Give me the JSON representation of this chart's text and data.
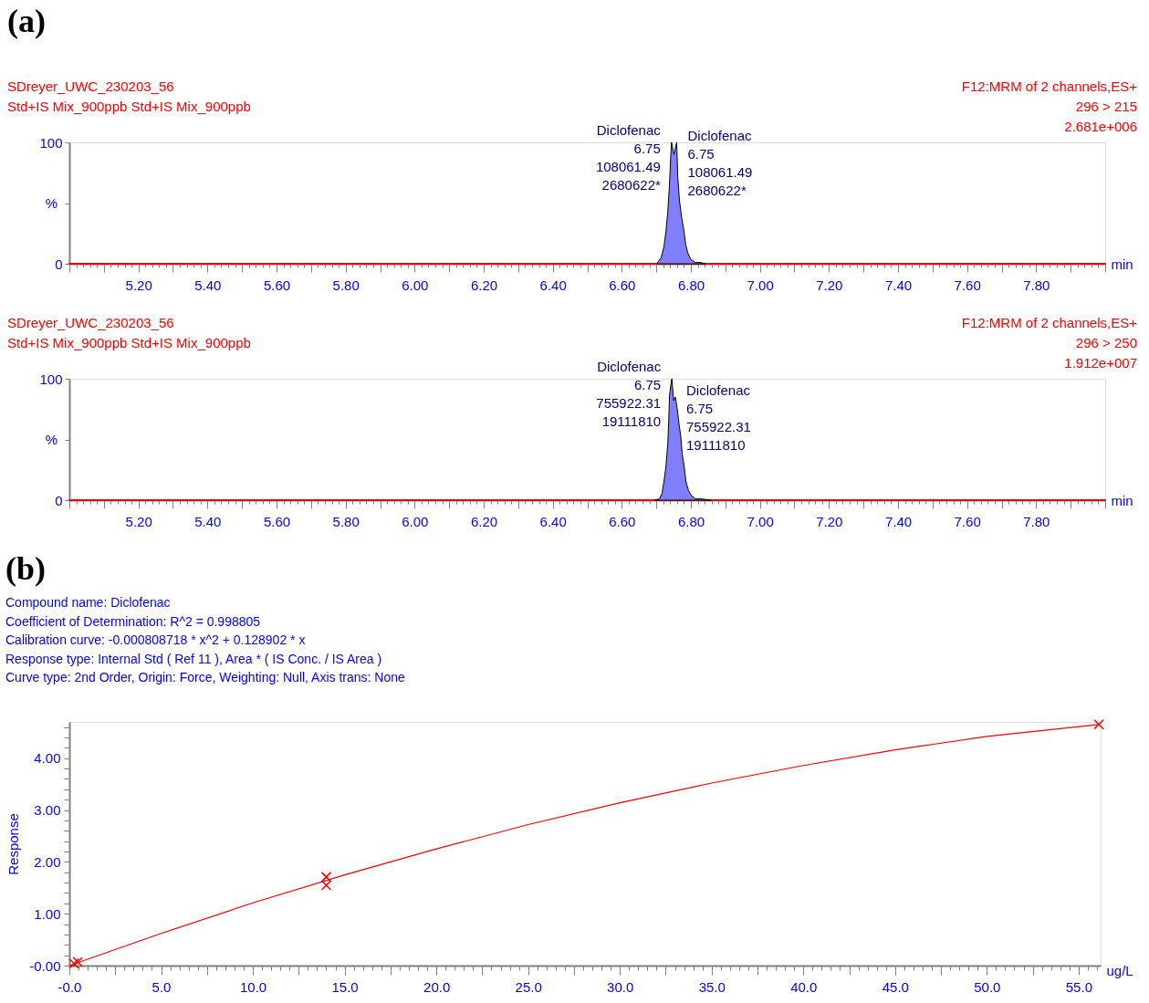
{
  "chart_data": [
    {
      "type": "area",
      "title": "(a)",
      "xlabel": "min",
      "ylabel": "%",
      "xlim": [
        5.0,
        8.0
      ],
      "ylim": [
        0,
        100
      ],
      "xticks": [
        {
          "value": 5.0,
          "label": null
        },
        {
          "value": 5.02,
          "label": null
        },
        {
          "value": 5.04,
          "label": null
        },
        {
          "value": 5.06,
          "label": null
        },
        {
          "value": 5.08,
          "label": null
        },
        {
          "value": 5.1,
          "label": null
        },
        {
          "value": 5.12,
          "label": null
        },
        {
          "value": 5.14,
          "label": null
        },
        {
          "value": 5.16,
          "label": null
        },
        {
          "value": 5.18,
          "label": null
        },
        {
          "value": 5.2,
          "label": "5.20"
        },
        {
          "value": 5.22,
          "label": null
        },
        {
          "value": 5.24,
          "label": null
        },
        {
          "value": 5.26,
          "label": null
        },
        {
          "value": 5.28,
          "label": null
        },
        {
          "value": 5.3,
          "label": null
        },
        {
          "value": 5.32,
          "label": null
        },
        {
          "value": 5.34,
          "label": null
        },
        {
          "value": 5.36,
          "label": null
        },
        {
          "value": 5.38,
          "label": null
        },
        {
          "value": 5.4,
          "label": "5.40"
        },
        {
          "value": 5.42,
          "label": null
        },
        {
          "value": 5.44,
          "label": null
        },
        {
          "value": 5.46,
          "label": null
        },
        {
          "value": 5.48,
          "label": null
        },
        {
          "value": 5.5,
          "label": null
        },
        {
          "value": 5.52,
          "label": null
        },
        {
          "value": 5.54,
          "label": null
        },
        {
          "value": 5.56,
          "label": null
        },
        {
          "value": 5.58,
          "label": null
        },
        {
          "value": 5.6,
          "label": "5.60"
        },
        {
          "value": 5.62,
          "label": null
        },
        {
          "value": 5.64,
          "label": null
        },
        {
          "value": 5.66,
          "label": null
        },
        {
          "value": 5.68,
          "label": null
        },
        {
          "value": 5.7,
          "label": null
        },
        {
          "value": 5.72,
          "label": null
        },
        {
          "value": 5.74,
          "label": null
        },
        {
          "value": 5.76,
          "label": null
        },
        {
          "value": 5.78,
          "label": null
        },
        {
          "value": 5.8,
          "label": "5.80"
        },
        {
          "value": 5.82,
          "label": null
        },
        {
          "value": 5.84,
          "label": null
        },
        {
          "value": 5.86,
          "label": null
        },
        {
          "value": 5.88,
          "label": null
        },
        {
          "value": 5.9,
          "label": null
        },
        {
          "value": 5.92,
          "label": null
        },
        {
          "value": 5.94,
          "label": null
        },
        {
          "value": 5.96,
          "label": null
        },
        {
          "value": 5.98,
          "label": null
        },
        {
          "value": 6.0,
          "label": "6.00"
        },
        {
          "value": 6.02,
          "label": null
        },
        {
          "value": 6.04,
          "label": null
        },
        {
          "value": 6.06,
          "label": null
        },
        {
          "value": 6.08,
          "label": null
        },
        {
          "value": 6.1,
          "label": null
        },
        {
          "value": 6.12,
          "label": null
        },
        {
          "value": 6.14,
          "label": null
        },
        {
          "value": 6.16,
          "label": null
        },
        {
          "value": 6.18,
          "label": null
        },
        {
          "value": 6.2,
          "label": "6.20"
        },
        {
          "value": 6.22,
          "label": null
        },
        {
          "value": 6.24,
          "label": null
        },
        {
          "value": 6.26,
          "label": null
        },
        {
          "value": 6.28,
          "label": null
        },
        {
          "value": 6.3,
          "label": null
        },
        {
          "value": 6.32,
          "label": null
        },
        {
          "value": 6.34,
          "label": null
        },
        {
          "value": 6.36,
          "label": null
        },
        {
          "value": 6.38,
          "label": null
        },
        {
          "value": 6.4,
          "label": "6.40"
        },
        {
          "value": 6.42,
          "label": null
        },
        {
          "value": 6.44,
          "label": null
        },
        {
          "value": 6.46,
          "label": null
        },
        {
          "value": 6.48,
          "label": null
        },
        {
          "value": 6.5,
          "label": null
        },
        {
          "value": 6.52,
          "label": null
        },
        {
          "value": 6.54,
          "label": null
        },
        {
          "value": 6.56,
          "label": null
        },
        {
          "value": 6.58,
          "label": null
        },
        {
          "value": 6.6,
          "label": "6.60"
        },
        {
          "value": 6.62,
          "label": null
        },
        {
          "value": 6.64,
          "label": null
        },
        {
          "value": 6.66,
          "label": null
        },
        {
          "value": 6.68,
          "label": null
        },
        {
          "value": 6.7,
          "label": null
        },
        {
          "value": 6.72,
          "label": null
        },
        {
          "value": 6.74,
          "label": null
        },
        {
          "value": 6.76,
          "label": null
        },
        {
          "value": 6.78,
          "label": null
        },
        {
          "value": 6.8,
          "label": "6.80"
        },
        {
          "value": 6.82,
          "label": null
        },
        {
          "value": 6.84,
          "label": null
        },
        {
          "value": 6.86,
          "label": null
        },
        {
          "value": 6.88,
          "label": null
        },
        {
          "value": 6.9,
          "label": null
        },
        {
          "value": 6.92,
          "label": null
        },
        {
          "value": 6.94,
          "label": null
        },
        {
          "value": 6.96,
          "label": null
        },
        {
          "value": 6.98,
          "label": null
        },
        {
          "value": 7.0,
          "label": "7.00"
        },
        {
          "value": 7.02,
          "label": null
        },
        {
          "value": 7.04,
          "label": null
        },
        {
          "value": 7.06,
          "label": null
        },
        {
          "value": 7.08,
          "label": null
        },
        {
          "value": 7.1,
          "label": null
        },
        {
          "value": 7.12,
          "label": null
        },
        {
          "value": 7.14,
          "label": null
        },
        {
          "value": 7.16,
          "label": null
        },
        {
          "value": 7.18,
          "label": null
        },
        {
          "value": 7.2,
          "label": "7.20"
        },
        {
          "value": 7.22,
          "label": null
        },
        {
          "value": 7.24,
          "label": null
        },
        {
          "value": 7.26,
          "label": null
        },
        {
          "value": 7.28,
          "label": null
        },
        {
          "value": 7.3,
          "label": null
        },
        {
          "value": 7.32,
          "label": null
        },
        {
          "value": 7.34,
          "label": null
        },
        {
          "value": 7.36,
          "label": null
        },
        {
          "value": 7.38,
          "label": null
        },
        {
          "value": 7.4,
          "label": "7.40"
        },
        {
          "value": 7.42,
          "label": null
        },
        {
          "value": 7.44,
          "label": null
        },
        {
          "value": 7.46,
          "label": null
        },
        {
          "value": 7.48,
          "label": null
        },
        {
          "value": 7.5,
          "label": null
        },
        {
          "value": 7.52,
          "label": null
        },
        {
          "value": 7.54,
          "label": null
        },
        {
          "value": 7.56,
          "label": null
        },
        {
          "value": 7.58,
          "label": null
        },
        {
          "value": 7.6,
          "label": "7.60"
        },
        {
          "value": 7.62,
          "label": null
        },
        {
          "value": 7.64,
          "label": null
        },
        {
          "value": 7.66,
          "label": null
        },
        {
          "value": 7.68,
          "label": null
        },
        {
          "value": 7.7,
          "label": null
        },
        {
          "value": 7.72,
          "label": null
        },
        {
          "value": 7.74,
          "label": null
        },
        {
          "value": 7.76,
          "label": null
        },
        {
          "value": 7.78,
          "label": null
        },
        {
          "value": 7.8,
          "label": "7.80"
        },
        {
          "value": 7.82,
          "label": null
        },
        {
          "value": 7.84,
          "label": null
        },
        {
          "value": 7.86,
          "label": null
        },
        {
          "value": 7.88,
          "label": null
        },
        {
          "value": 7.9,
          "label": null
        },
        {
          "value": 7.92,
          "label": null
        },
        {
          "value": 7.94,
          "label": null
        },
        {
          "value": 7.96,
          "label": null
        },
        {
          "value": 7.98,
          "label": null
        },
        {
          "value": 8.0,
          "label": null
        }
      ],
      "yticks": [
        0,
        {
          "value": 50,
          "label": null
        },
        100
      ],
      "series": [
        {
          "type": "line",
          "color": "#ff0000",
          "x": [
            5.0,
            8.0
          ],
          "values": [
            0,
            0
          ]
        },
        {
          "type": "area",
          "color": "#8080ff",
          "x": [
            6.701,
            6.709,
            6.714,
            6.722,
            6.728,
            6.733,
            6.738,
            6.742,
            6.744,
            6.751,
            6.759,
            6.762,
            6.767,
            6.774,
            6.78,
            6.785,
            6.791,
            6.799,
            6.812,
            6.829,
            6.842
          ],
          "values": [
            0,
            3,
            5,
            14,
            27,
            42,
            65,
            90,
            100,
            90,
            100,
            72,
            52,
            37,
            27,
            16,
            9,
            4,
            1,
            1,
            0
          ]
        }
      ],
      "annotations": [
        "SDreyer_UWC_230203_56",
        "Std+IS Mix_900ppb Std+IS Mix_900ppb",
        "F12:MRM of 2 channels,ES+",
        "296 > 215",
        "2.681e+006",
        {
          "text": "Diclofenac\n6.75\n108061.49\n2680622*",
          "x": 6.744,
          "y": 100
        },
        {
          "text": "Diclofenac\n6.75\n108061.49\n2680622*",
          "x": 6.759,
          "y": 100
        }
      ]
    },
    {
      "type": "area",
      "xlabel": "min",
      "ylabel": "%",
      "xlim": [
        5.0,
        8.0
      ],
      "ylim": [
        0,
        100
      ],
      "xticks": [
        {
          "value": 5.0,
          "label": null
        },
        {
          "value": 5.02,
          "label": null
        },
        {
          "value": 5.04,
          "label": null
        },
        {
          "value": 5.06,
          "label": null
        },
        {
          "value": 5.08,
          "label": null
        },
        {
          "value": 5.1,
          "label": null
        },
        {
          "value": 5.12,
          "label": null
        },
        {
          "value": 5.14,
          "label": null
        },
        {
          "value": 5.16,
          "label": null
        },
        {
          "value": 5.18,
          "label": null
        },
        {
          "value": 5.2,
          "label": "5.20"
        },
        {
          "value": 5.22,
          "label": null
        },
        {
          "value": 5.24,
          "label": null
        },
        {
          "value": 5.26,
          "label": null
        },
        {
          "value": 5.28,
          "label": null
        },
        {
          "value": 5.3,
          "label": null
        },
        {
          "value": 5.32,
          "label": null
        },
        {
          "value": 5.34,
          "label": null
        },
        {
          "value": 5.36,
          "label": null
        },
        {
          "value": 5.38,
          "label": null
        },
        {
          "value": 5.4,
          "label": "5.40"
        },
        {
          "value": 5.42,
          "label": null
        },
        {
          "value": 5.44,
          "label": null
        },
        {
          "value": 5.46,
          "label": null
        },
        {
          "value": 5.48,
          "label": null
        },
        {
          "value": 5.5,
          "label": null
        },
        {
          "value": 5.52,
          "label": null
        },
        {
          "value": 5.54,
          "label": null
        },
        {
          "value": 5.56,
          "label": null
        },
        {
          "value": 5.58,
          "label": null
        },
        {
          "value": 5.6,
          "label": "5.60"
        },
        {
          "value": 5.62,
          "label": null
        },
        {
          "value": 5.64,
          "label": null
        },
        {
          "value": 5.66,
          "label": null
        },
        {
          "value": 5.68,
          "label": null
        },
        {
          "value": 5.7,
          "label": null
        },
        {
          "value": 5.72,
          "label": null
        },
        {
          "value": 5.74,
          "label": null
        },
        {
          "value": 5.76,
          "label": null
        },
        {
          "value": 5.78,
          "label": null
        },
        {
          "value": 5.8,
          "label": "5.80"
        },
        {
          "value": 5.82,
          "label": null
        },
        {
          "value": 5.84,
          "label": null
        },
        {
          "value": 5.86,
          "label": null
        },
        {
          "value": 5.88,
          "label": null
        },
        {
          "value": 5.9,
          "label": null
        },
        {
          "value": 5.92,
          "label": null
        },
        {
          "value": 5.94,
          "label": null
        },
        {
          "value": 5.96,
          "label": null
        },
        {
          "value": 5.98,
          "label": null
        },
        {
          "value": 6.0,
          "label": "6.00"
        },
        {
          "value": 6.02,
          "label": null
        },
        {
          "value": 6.04,
          "label": null
        },
        {
          "value": 6.06,
          "label": null
        },
        {
          "value": 6.08,
          "label": null
        },
        {
          "value": 6.1,
          "label": null
        },
        {
          "value": 6.12,
          "label": null
        },
        {
          "value": 6.14,
          "label": null
        },
        {
          "value": 6.16,
          "label": null
        },
        {
          "value": 6.18,
          "label": null
        },
        {
          "value": 6.2,
          "label": "6.20"
        },
        {
          "value": 6.22,
          "label": null
        },
        {
          "value": 6.24,
          "label": null
        },
        {
          "value": 6.26,
          "label": null
        },
        {
          "value": 6.28,
          "label": null
        },
        {
          "value": 6.3,
          "label": null
        },
        {
          "value": 6.32,
          "label": null
        },
        {
          "value": 6.34,
          "label": null
        },
        {
          "value": 6.36,
          "label": null
        },
        {
          "value": 6.38,
          "label": null
        },
        {
          "value": 6.4,
          "label": "6.40"
        },
        {
          "value": 6.42,
          "label": null
        },
        {
          "value": 6.44,
          "label": null
        },
        {
          "value": 6.46,
          "label": null
        },
        {
          "value": 6.48,
          "label": null
        },
        {
          "value": 6.5,
          "label": null
        },
        {
          "value": 6.52,
          "label": null
        },
        {
          "value": 6.54,
          "label": null
        },
        {
          "value": 6.56,
          "label": null
        },
        {
          "value": 6.58,
          "label": null
        },
        {
          "value": 6.6,
          "label": "6.60"
        },
        {
          "value": 6.62,
          "label": null
        },
        {
          "value": 6.64,
          "label": null
        },
        {
          "value": 6.66,
          "label": null
        },
        {
          "value": 6.68,
          "label": null
        },
        {
          "value": 6.7,
          "label": null
        },
        {
          "value": 6.72,
          "label": null
        },
        {
          "value": 6.74,
          "label": null
        },
        {
          "value": 6.76,
          "label": null
        },
        {
          "value": 6.78,
          "label": null
        },
        {
          "value": 6.8,
          "label": "6.80"
        },
        {
          "value": 6.82,
          "label": null
        },
        {
          "value": 6.84,
          "label": null
        },
        {
          "value": 6.86,
          "label": null
        },
        {
          "value": 6.88,
          "label": null
        },
        {
          "value": 6.9,
          "label": null
        },
        {
          "value": 6.92,
          "label": null
        },
        {
          "value": 6.94,
          "label": null
        },
        {
          "value": 6.96,
          "label": null
        },
        {
          "value": 6.98,
          "label": null
        },
        {
          "value": 7.0,
          "label": "7.00"
        },
        {
          "value": 7.02,
          "label": null
        },
        {
          "value": 7.04,
          "label": null
        },
        {
          "value": 7.06,
          "label": null
        },
        {
          "value": 7.08,
          "label": null
        },
        {
          "value": 7.1,
          "label": null
        },
        {
          "value": 7.12,
          "label": null
        },
        {
          "value": 7.14,
          "label": null
        },
        {
          "value": 7.16,
          "label": null
        },
        {
          "value": 7.18,
          "label": null
        },
        {
          "value": 7.2,
          "label": "7.20"
        },
        {
          "value": 7.22,
          "label": null
        },
        {
          "value": 7.24,
          "label": null
        },
        {
          "value": 7.26,
          "label": null
        },
        {
          "value": 7.28,
          "label": null
        },
        {
          "value": 7.3,
          "label": null
        },
        {
          "value": 7.32,
          "label": null
        },
        {
          "value": 7.34,
          "label": null
        },
        {
          "value": 7.36,
          "label": null
        },
        {
          "value": 7.38,
          "label": null
        },
        {
          "value": 7.4,
          "label": "7.40"
        },
        {
          "value": 7.42,
          "label": null
        },
        {
          "value": 7.44,
          "label": null
        },
        {
          "value": 7.46,
          "label": null
        },
        {
          "value": 7.48,
          "label": null
        },
        {
          "value": 7.5,
          "label": null
        },
        {
          "value": 7.52,
          "label": null
        },
        {
          "value": 7.54,
          "label": null
        },
        {
          "value": 7.56,
          "label": null
        },
        {
          "value": 7.58,
          "label": null
        },
        {
          "value": 7.6,
          "label": "7.60"
        },
        {
          "value": 7.62,
          "label": null
        },
        {
          "value": 7.64,
          "label": null
        },
        {
          "value": 7.66,
          "label": null
        },
        {
          "value": 7.68,
          "label": null
        },
        {
          "value": 7.7,
          "label": null
        },
        {
          "value": 7.72,
          "label": null
        },
        {
          "value": 7.74,
          "label": null
        },
        {
          "value": 7.76,
          "label": null
        },
        {
          "value": 7.78,
          "label": null
        },
        {
          "value": 7.8,
          "label": "7.80"
        },
        {
          "value": 7.82,
          "label": null
        },
        {
          "value": 7.84,
          "label": null
        },
        {
          "value": 7.86,
          "label": null
        },
        {
          "value": 7.88,
          "label": null
        },
        {
          "value": 7.9,
          "label": null
        },
        {
          "value": 7.92,
          "label": null
        },
        {
          "value": 7.94,
          "label": null
        },
        {
          "value": 7.96,
          "label": null
        },
        {
          "value": 7.98,
          "label": null
        },
        {
          "value": 8.0,
          "label": null
        }
      ],
      "yticks": [
        0,
        {
          "value": 50,
          "label": null
        },
        100
      ],
      "series": [
        {
          "type": "line",
          "color": "#ff0000",
          "x": [
            5.0,
            8.0
          ],
          "values": [
            0,
            0
          ]
        },
        {
          "type": "area",
          "color": "#8080ff",
          "x": [
            6.694,
            6.709,
            6.716,
            6.722,
            6.728,
            6.733,
            6.736,
            6.738,
            6.742,
            6.745,
            6.75,
            6.755,
            6.759,
            6.762,
            6.766,
            6.771,
            6.775,
            6.781,
            6.786,
            6.793,
            6.801,
            6.813,
            6.829,
            6.858
          ],
          "values": [
            0,
            1,
            5,
            15,
            28,
            46,
            66,
            86,
            95,
            100,
            82,
            85,
            78,
            72,
            62,
            52,
            38,
            27,
            15,
            8,
            4,
            1,
            1,
            0
          ]
        }
      ],
      "annotations": [
        "SDreyer_UWC_230203_56",
        "Std+IS Mix_900ppb Std+IS Mix_900ppb",
        "F12:MRM of 2 channels,ES+",
        "296 > 250",
        "1.912e+007",
        {
          "text": "Diclofenac\n6.75\n755922.31\n19111810",
          "x": 6.745,
          "y": 100
        },
        {
          "text": "Diclofenac\n6.75\n755922.31\n19111810",
          "x": 6.755,
          "y": 85
        }
      ]
    },
    {
      "type": "line",
      "title": "(b)",
      "xlabel": "ug/L",
      "ylabel": "Response",
      "xlim": [
        0,
        56.2
      ],
      "ylim": [
        0,
        4.7
      ],
      "xticks": [
        {
          "value": 0,
          "label": "-0.0"
        },
        {
          "value": 0.5,
          "label": null
        },
        {
          "value": 1,
          "label": null
        },
        {
          "value": 1.5,
          "label": null
        },
        {
          "value": 2,
          "label": null
        },
        {
          "value": 2.5,
          "label": null
        },
        {
          "value": 3,
          "label": null
        },
        {
          "value": 3.5,
          "label": null
        },
        {
          "value": 4,
          "label": null
        },
        {
          "value": 4.5,
          "label": null
        },
        {
          "value": 5,
          "label": "5.0"
        },
        {
          "value": 5.5,
          "label": null
        },
        {
          "value": 6,
          "label": null
        },
        {
          "value": 6.5,
          "label": null
        },
        {
          "value": 7,
          "label": null
        },
        {
          "value": 7.5,
          "label": null
        },
        {
          "value": 8,
          "label": null
        },
        {
          "value": 8.5,
          "label": null
        },
        {
          "value": 9,
          "label": null
        },
        {
          "value": 9.5,
          "label": null
        },
        {
          "value": 10,
          "label": "10.0"
        },
        {
          "value": 10.5,
          "label": null
        },
        {
          "value": 11,
          "label": null
        },
        {
          "value": 11.5,
          "label": null
        },
        {
          "value": 12,
          "label": null
        },
        {
          "value": 12.5,
          "label": null
        },
        {
          "value": 13,
          "label": null
        },
        {
          "value": 13.5,
          "label": null
        },
        {
          "value": 14,
          "label": null
        },
        {
          "value": 14.5,
          "label": null
        },
        {
          "value": 15,
          "label": "15.0"
        },
        {
          "value": 15.5,
          "label": null
        },
        {
          "value": 16,
          "label": null
        },
        {
          "value": 16.5,
          "label": null
        },
        {
          "value": 17,
          "label": null
        },
        {
          "value": 17.5,
          "label": null
        },
        {
          "value": 18,
          "label": null
        },
        {
          "value": 18.5,
          "label": null
        },
        {
          "value": 19,
          "label": null
        },
        {
          "value": 19.5,
          "label": null
        },
        {
          "value": 20,
          "label": "20.0"
        },
        {
          "value": 20.5,
          "label": null
        },
        {
          "value": 21,
          "label": null
        },
        {
          "value": 21.5,
          "label": null
        },
        {
          "value": 22,
          "label": null
        },
        {
          "value": 22.5,
          "label": null
        },
        {
          "value": 23,
          "label": null
        },
        {
          "value": 23.5,
          "label": null
        },
        {
          "value": 24,
          "label": null
        },
        {
          "value": 24.5,
          "label": null
        },
        {
          "value": 25,
          "label": "25.0"
        },
        {
          "value": 25.5,
          "label": null
        },
        {
          "value": 26,
          "label": null
        },
        {
          "value": 26.5,
          "label": null
        },
        {
          "value": 27,
          "label": null
        },
        {
          "value": 27.5,
          "label": null
        },
        {
          "value": 28,
          "label": null
        },
        {
          "value": 28.5,
          "label": null
        },
        {
          "value": 29,
          "label": null
        },
        {
          "value": 29.5,
          "label": null
        },
        {
          "value": 30,
          "label": "30.0"
        },
        {
          "value": 30.5,
          "label": null
        },
        {
          "value": 31,
          "label": null
        },
        {
          "value": 31.5,
          "label": null
        },
        {
          "value": 32,
          "label": null
        },
        {
          "value": 32.5,
          "label": null
        },
        {
          "value": 33,
          "label": null
        },
        {
          "value": 33.5,
          "label": null
        },
        {
          "value": 34,
          "label": null
        },
        {
          "value": 34.5,
          "label": null
        },
        {
          "value": 35,
          "label": "35.0"
        },
        {
          "value": 35.5,
          "label": null
        },
        {
          "value": 36,
          "label": null
        },
        {
          "value": 36.5,
          "label": null
        },
        {
          "value": 37,
          "label": null
        },
        {
          "value": 37.5,
          "label": null
        },
        {
          "value": 38,
          "label": null
        },
        {
          "value": 38.5,
          "label": null
        },
        {
          "value": 39,
          "label": null
        },
        {
          "value": 39.5,
          "label": null
        },
        {
          "value": 40,
          "label": "40.0"
        },
        {
          "value": 40.5,
          "label": null
        },
        {
          "value": 41,
          "label": null
        },
        {
          "value": 41.5,
          "label": null
        },
        {
          "value": 42,
          "label": null
        },
        {
          "value": 42.5,
          "label": null
        },
        {
          "value": 43,
          "label": null
        },
        {
          "value": 43.5,
          "label": null
        },
        {
          "value": 44,
          "label": null
        },
        {
          "value": 44.5,
          "label": null
        },
        {
          "value": 45,
          "label": "45.0"
        },
        {
          "value": 45.5,
          "label": null
        },
        {
          "value": 46,
          "label": null
        },
        {
          "value": 46.5,
          "label": null
        },
        {
          "value": 47,
          "label": null
        },
        {
          "value": 47.5,
          "label": null
        },
        {
          "value": 48,
          "label": null
        },
        {
          "value": 48.5,
          "label": null
        },
        {
          "value": 49,
          "label": null
        },
        {
          "value": 49.5,
          "label": null
        },
        {
          "value": 50,
          "label": "50.0"
        },
        {
          "value": 50.5,
          "label": null
        },
        {
          "value": 51,
          "label": null
        },
        {
          "value": 51.5,
          "label": null
        },
        {
          "value": 52,
          "label": null
        },
        {
          "value": 52.5,
          "label": null
        },
        {
          "value": 53,
          "label": null
        },
        {
          "value": 53.5,
          "label": null
        },
        {
          "value": 54,
          "label": null
        },
        {
          "value": 54.5,
          "label": null
        },
        {
          "value": 55,
          "label": "55.0"
        },
        {
          "value": 55.5,
          "label": null
        },
        {
          "value": 56,
          "label": null
        }
      ],
      "yticks": [
        {
          "value": 0,
          "label": "-0.00"
        },
        {
          "value": 0.2,
          "label": null
        },
        {
          "value": 0.4,
          "label": null
        },
        {
          "value": 0.6,
          "label": null
        },
        {
          "value": 0.8,
          "label": null
        },
        {
          "value": 1,
          "label": "1.00"
        },
        {
          "value": 1.2,
          "label": null
        },
        {
          "value": 1.4,
          "label": null
        },
        {
          "value": 1.6,
          "label": null
        },
        {
          "value": 1.8,
          "label": null
        },
        {
          "value": 2,
          "label": "2.00"
        },
        {
          "value": 2.2,
          "label": null
        },
        {
          "value": 2.4,
          "label": null
        },
        {
          "value": 2.6,
          "label": null
        },
        {
          "value": 2.8,
          "label": null
        },
        {
          "value": 3,
          "label": "3.00"
        },
        {
          "value": 3.2,
          "label": null
        },
        {
          "value": 3.4,
          "label": null
        },
        {
          "value": 3.6,
          "label": null
        },
        {
          "value": 3.8,
          "label": null
        },
        {
          "value": 4,
          "label": "4.00"
        },
        {
          "value": 4.2,
          "label": null
        },
        {
          "value": 4.4,
          "label": null
        },
        {
          "value": 4.6,
          "label": null
        }
      ],
      "series": [
        {
          "type": "line",
          "color": "#ff0000",
          "x": [
            0,
            5,
            10,
            15,
            20,
            25,
            30,
            35,
            40,
            45,
            50,
            56.1
          ],
          "values": [
            0,
            0.62,
            1.21,
            1.75,
            2.25,
            2.72,
            3.14,
            3.52,
            3.86,
            4.16,
            4.42,
            4.65
          ]
        },
        {
          "type": "scatter",
          "color": "#ff0000",
          "marker": "cross",
          "x": [
            0.25,
            0.45,
            14.0,
            14.0,
            56.1
          ],
          "values": [
            0.04,
            0.07,
            1.55,
            1.71,
            4.65
          ]
        }
      ],
      "annotations": [
        "Compound name: Diclofenac",
        "Coefficient of Determination: R^2 = 0.998805",
        "Calibration curve: -0.000808718 * x^2 + 0.128902 * x",
        "Response type: Internal Std ( Ref 11 ), Area * ( IS Conc. / IS Area )",
        "Curve type: 2nd Order, Origin: Force, Weighting: Null, Axis trans: None"
      ]
    }
  ]
}
